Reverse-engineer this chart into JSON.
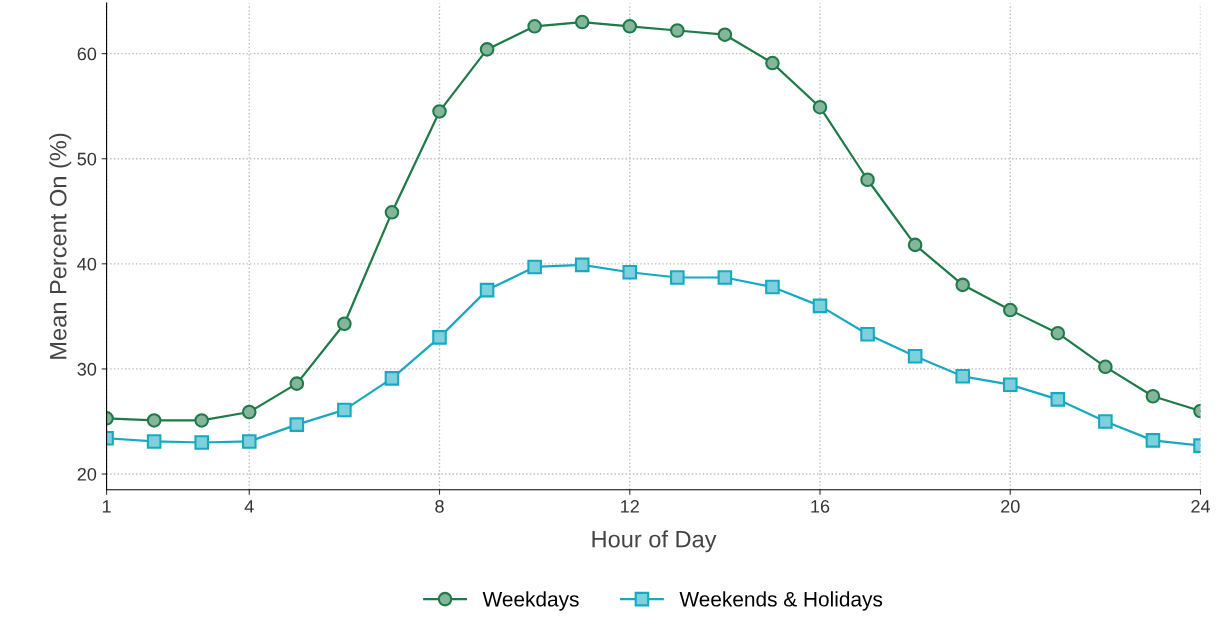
{
  "chart_data": {
    "type": "line",
    "xlabel": "Hour of Day",
    "ylabel": "Mean Percent On (%)",
    "x": [
      1,
      2,
      3,
      4,
      5,
      6,
      7,
      8,
      9,
      10,
      11,
      12,
      13,
      14,
      15,
      16,
      17,
      18,
      19,
      20,
      21,
      22,
      23,
      24
    ],
    "series": [
      {
        "name": "Weekdays",
        "color": "#1e7a48",
        "marker": "circle",
        "values": [
          25.3,
          25.1,
          25.1,
          25.9,
          28.6,
          34.3,
          44.9,
          54.5,
          60.4,
          62.6,
          63.0,
          62.6,
          62.2,
          61.8,
          59.1,
          54.9,
          48.0,
          41.8,
          38.0,
          35.6,
          33.4,
          30.2,
          27.4,
          26.0
        ]
      },
      {
        "name": "Weekends & Holidays",
        "color": "#17a9c1",
        "marker": "square",
        "values": [
          23.4,
          23.1,
          23.0,
          23.1,
          24.7,
          26.1,
          29.1,
          33.0,
          37.5,
          39.7,
          39.9,
          39.2,
          38.7,
          38.7,
          37.8,
          36.0,
          33.3,
          31.2,
          29.3,
          28.5,
          27.1,
          25.0,
          23.2,
          22.7
        ]
      }
    ],
    "xlim": [
      1,
      24
    ],
    "xticks": [
      1,
      4,
      8,
      12,
      16,
      20,
      24
    ],
    "ylim": [
      18.5,
      64.8
    ],
    "yticks": [
      20,
      30,
      40,
      50,
      60
    ],
    "grid": true,
    "legend": "bottom",
    "line_style": "solid"
  }
}
